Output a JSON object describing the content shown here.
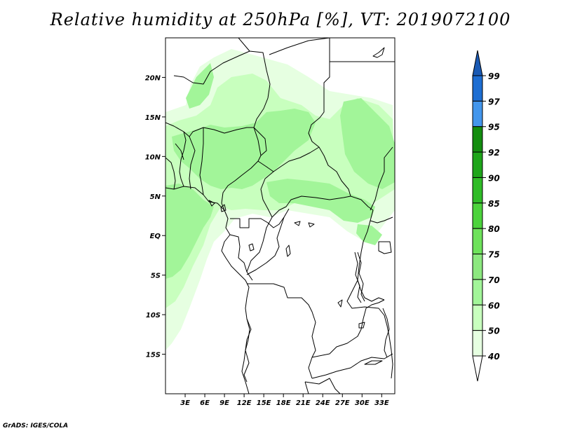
{
  "title": "Relative humidity at 250hPa [%], VT: 2019072100",
  "credit": "GrADS: IGES/COLA",
  "map": {
    "lon_range": [
      0,
      35
    ],
    "lat_range": [
      -20,
      25
    ],
    "lat_labels": [
      {
        "value": 20,
        "label": "20N"
      },
      {
        "value": 15,
        "label": "15N"
      },
      {
        "value": 10,
        "label": "10N"
      },
      {
        "value": 5,
        "label": "5N"
      },
      {
        "value": 0,
        "label": "EQ"
      },
      {
        "value": -5,
        "label": "5S"
      },
      {
        "value": -10,
        "label": "10S"
      },
      {
        "value": -15,
        "label": "15S"
      }
    ],
    "lon_labels": [
      {
        "value": 3,
        "label": "3E"
      },
      {
        "value": 6,
        "label": "6E"
      },
      {
        "value": 9,
        "label": "9E"
      },
      {
        "value": 12,
        "label": "12E"
      },
      {
        "value": 15,
        "label": "15E"
      },
      {
        "value": 18,
        "label": "18E"
      },
      {
        "value": 21,
        "label": "21E"
      },
      {
        "value": 24,
        "label": "24E"
      },
      {
        "value": 27,
        "label": "27E"
      },
      {
        "value": 30,
        "label": "30E"
      },
      {
        "value": 33,
        "label": "33E"
      }
    ]
  },
  "colorbar": {
    "levels": [
      "40",
      "50",
      "60",
      "70",
      "75",
      "80",
      "85",
      "90",
      "92",
      "95",
      "97",
      "99"
    ],
    "colors": [
      "#ffffff",
      "#e6ffe1",
      "#c8ffbe",
      "#a2f599",
      "#8ce87f",
      "#6ee25b",
      "#4cd33c",
      "#2fbc27",
      "#1ea51a",
      "#138d0f",
      "#4396ec",
      "#1e6ed2",
      "#1a5ab4"
    ],
    "colors_note_none": ""
  },
  "humidity_colors": {
    "c40": "#e6ffe1",
    "c50": "#c8ffbe",
    "c60": "#a2f599"
  }
}
